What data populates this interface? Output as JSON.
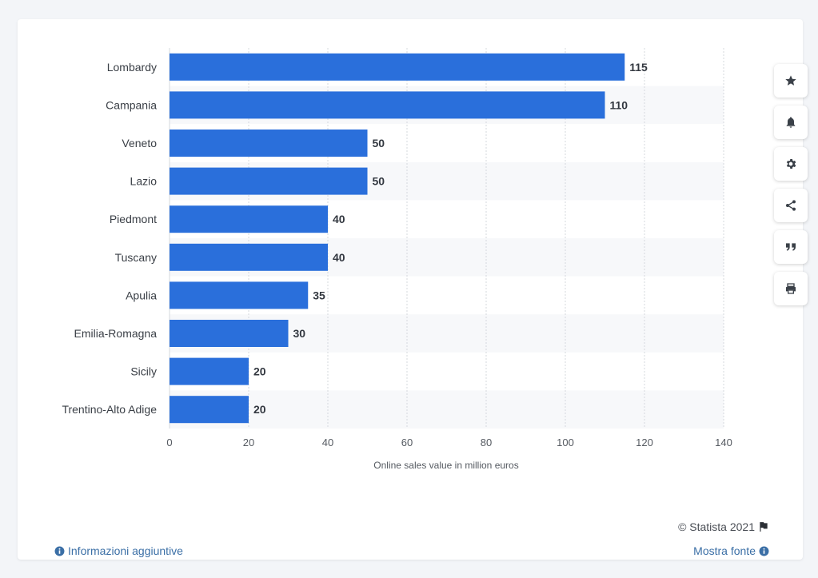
{
  "chart_data": {
    "type": "bar",
    "orientation": "horizontal",
    "categories": [
      "Lombardy",
      "Campania",
      "Veneto",
      "Lazio",
      "Piedmont",
      "Tuscany",
      "Apulia",
      "Emilia-Romagna",
      "Sicily",
      "Trentino-Alto Adige"
    ],
    "values": [
      115,
      110,
      50,
      50,
      40,
      40,
      35,
      30,
      20,
      20
    ],
    "xlabel": "Online sales value in million euros",
    "xlim": [
      0,
      140
    ],
    "xticks": [
      0,
      20,
      40,
      60,
      80,
      100,
      120,
      140
    ],
    "grid": true,
    "bar_color": "#2a6fdb"
  },
  "toolbar": {
    "items": [
      "star-icon",
      "bell-icon",
      "gear-icon",
      "share-icon",
      "quote-icon",
      "print-icon"
    ]
  },
  "footer": {
    "copyright": "© Statista 2021",
    "additional_info": "Informazioni aggiuntive",
    "show_source": "Mostra fonte"
  }
}
